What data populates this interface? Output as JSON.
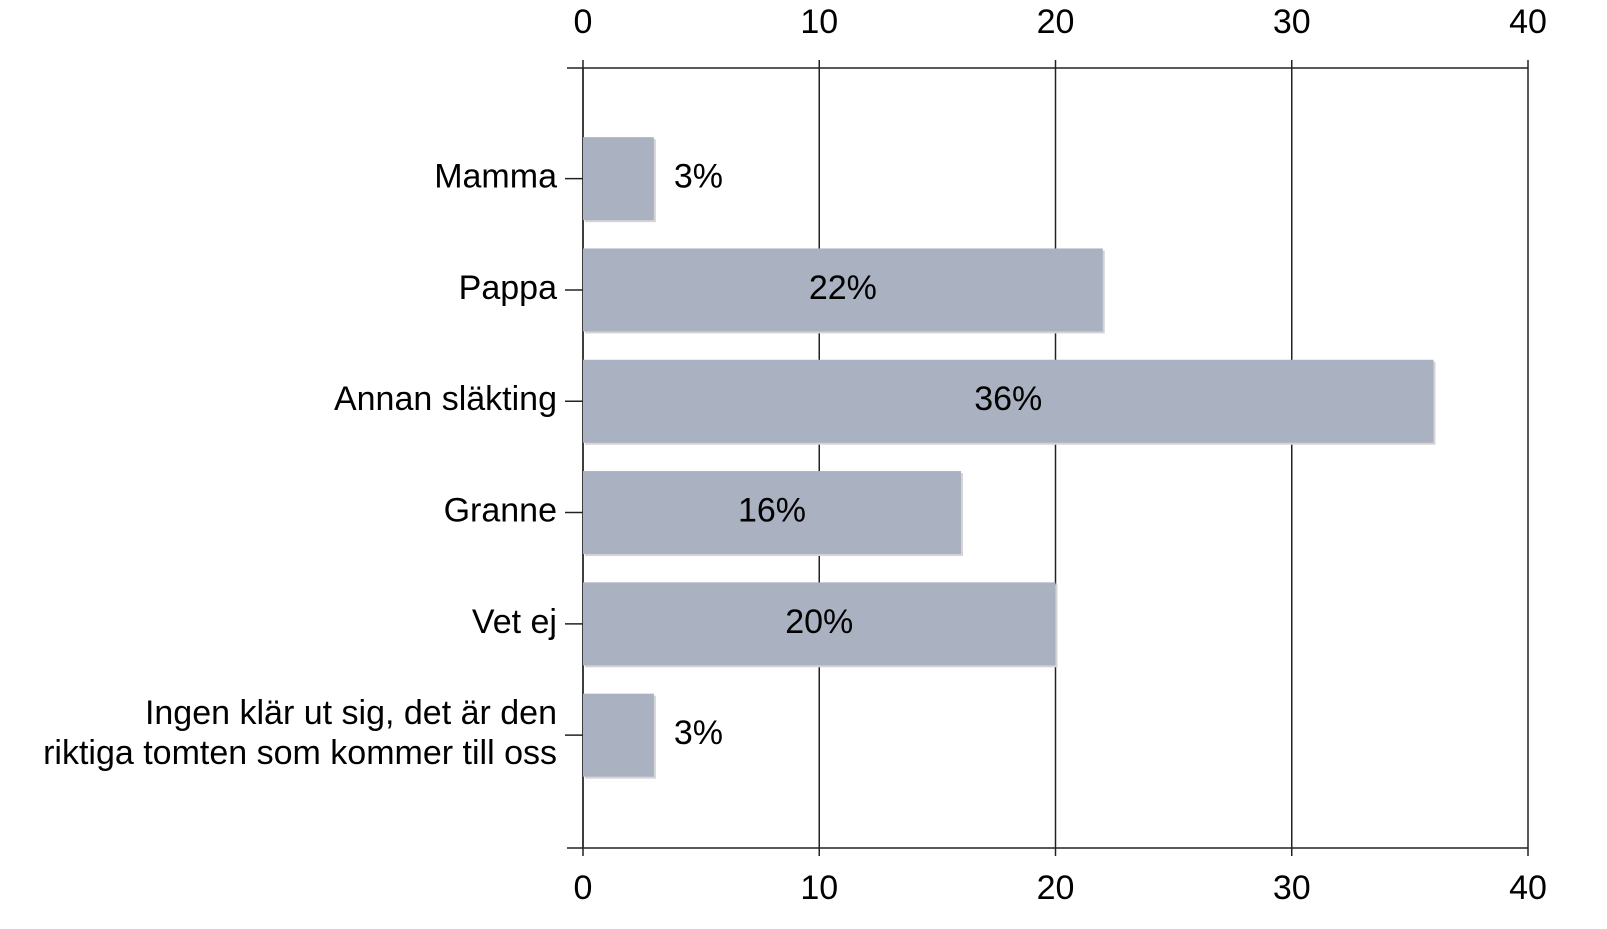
{
  "chart_data": {
    "type": "bar",
    "orientation": "horizontal",
    "categories": [
      "Mamma",
      "Pappa",
      "Annan släkting",
      "Granne",
      "Vet ej",
      "Ingen klär ut sig, det är den\nriktiga tomten som kommer till oss"
    ],
    "values": [
      3,
      22,
      36,
      16,
      20,
      3
    ],
    "value_labels": [
      "3%",
      "22%",
      "36%",
      "16%",
      "20%",
      "3%"
    ],
    "color": "#aab2c2",
    "xlim": [
      0,
      40
    ],
    "xticks": [
      0,
      10,
      20,
      30,
      40
    ],
    "grid": true
  }
}
